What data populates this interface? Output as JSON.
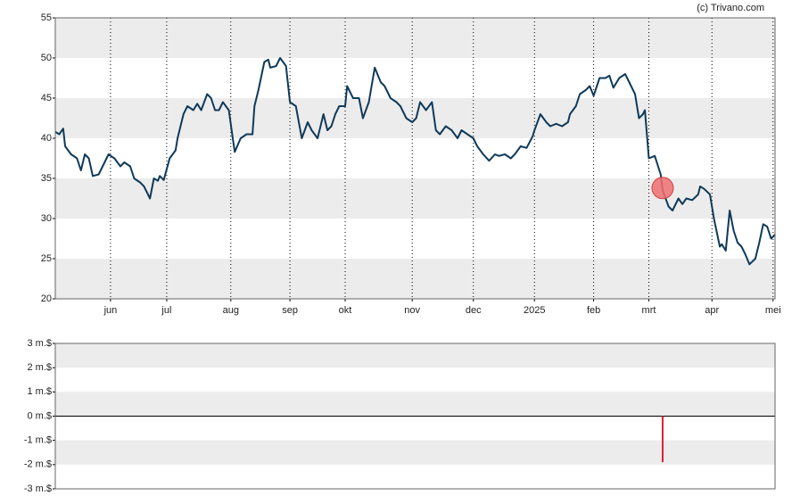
{
  "credit": "(c) Trivano.com",
  "chart_data": [
    {
      "type": "line",
      "color": "#0f3a5a",
      "marker_color": "#f07070",
      "x": [
        0,
        2,
        4,
        5,
        8,
        11,
        13,
        15,
        17,
        19,
        22,
        24,
        27,
        30,
        33,
        35,
        38,
        40,
        43,
        45,
        48,
        50,
        52,
        53,
        55,
        58,
        61,
        62,
        65,
        67,
        70,
        72,
        74,
        77,
        79,
        81,
        83,
        85,
        88,
        90,
        91,
        94,
        97,
        100,
        101,
        103,
        106,
        108,
        109,
        112,
        114,
        117,
        119,
        122,
        125,
        128,
        130,
        133,
        136,
        138,
        140,
        142,
        144,
        147,
        148,
        151,
        154,
        156,
        159,
        162,
        165,
        167,
        170,
        173,
        175,
        178,
        181,
        183,
        185,
        188,
        191,
        193,
        195,
        198,
        201,
        204,
        206,
        209,
        212,
        214,
        217,
        220,
        223,
        225,
        228,
        231,
        233,
        236,
        239,
        242,
        243,
        246,
        249,
        251,
        254,
        257,
        260,
        261,
        264,
        266,
        269,
        271,
        273,
        276,
        279,
        281,
        283,
        286,
        289,
        291,
        294,
        296,
        298,
        299,
        301,
        304,
        307,
        308,
        311,
        313,
        316,
        318,
        320,
        323,
        326,
        327,
        329,
        332,
        334,
        337,
        338,
        340,
        342,
        344,
        346,
        348,
        350,
        352,
        355,
        357,
        359,
        361,
        363,
        365
      ],
      "values": [
        40.8,
        40.5,
        41.2,
        39,
        38,
        37.5,
        36,
        38,
        37.5,
        35.3,
        35.5,
        36.5,
        38,
        37.5,
        36.5,
        37,
        36.5,
        35,
        34.5,
        34,
        32.5,
        35,
        34.7,
        35.3,
        34.8,
        37.5,
        38.5,
        40,
        43,
        44,
        43.5,
        44.3,
        43.5,
        45.5,
        45,
        43.5,
        43.5,
        44.5,
        43.5,
        40,
        38.3,
        40,
        40.5,
        40.5,
        44,
        46,
        49.5,
        49.8,
        48.8,
        49,
        50,
        49,
        44.5,
        44,
        40,
        42,
        41,
        40,
        43,
        41,
        41.5,
        43,
        44,
        44,
        46.5,
        45,
        45,
        42.5,
        44.5,
        48.8,
        47,
        46.5,
        45,
        44.5,
        44,
        42.5,
        42,
        42.5,
        44.5,
        43.5,
        44.5,
        41,
        40.5,
        41.5,
        41,
        40,
        41,
        40.5,
        40,
        39,
        38,
        37.2,
        38,
        37.8,
        38,
        37.5,
        38,
        39,
        38.8,
        40.2,
        41,
        43,
        42,
        41.5,
        41.8,
        41.5,
        42,
        43,
        44,
        45.5,
        46,
        46.5,
        45.3,
        47.5,
        47.5,
        47.8,
        46.3,
        47.5,
        48,
        47,
        45.5,
        42.5,
        43,
        43.5,
        37.5,
        37.8,
        35.5,
        33.5,
        31.5,
        31,
        32.5,
        31.8,
        32.5,
        32.3,
        33,
        34,
        33.7,
        33,
        30,
        26.5,
        26.8,
        26,
        31,
        28.5,
        27,
        26.5,
        25.5,
        24.3,
        25,
        27,
        29.3,
        29,
        27.5,
        28
      ],
      "markers": {
        "x": [
          308
        ],
        "values": [
          33.8
        ]
      },
      "xlim": [
        0,
        365
      ],
      "xticks": [
        {
          "value": 28,
          "label": "jun"
        },
        {
          "value": 56.5,
          "label": "jul"
        },
        {
          "value": 89,
          "label": "aug"
        },
        {
          "value": 119,
          "label": "sep"
        },
        {
          "value": 147,
          "label": "okt"
        },
        {
          "value": 181,
          "label": "nov"
        },
        {
          "value": 212,
          "label": "dec"
        },
        {
          "value": 243,
          "label": "2025"
        },
        {
          "value": 273,
          "label": "feb"
        },
        {
          "value": 301,
          "label": "mrt"
        },
        {
          "value": 333,
          "label": "apr"
        },
        {
          "value": 364,
          "label": "mei"
        }
      ],
      "ylim": [
        20,
        55
      ],
      "yticks": [
        20,
        25,
        30,
        35,
        40,
        45,
        50,
        55
      ],
      "grid": true
    },
    {
      "type": "bar",
      "color": "#e0203a",
      "x": [
        308
      ],
      "values": [
        -1.9
      ],
      "xlim": [
        0,
        365
      ],
      "ylim": [
        -3,
        3
      ],
      "yticks": [
        {
          "value": -3,
          "label": "-3 m.$"
        },
        {
          "value": -2,
          "label": "-2 m.$"
        },
        {
          "value": -1,
          "label": "-1 m.$"
        },
        {
          "value": 0,
          "label": "0 m.$"
        },
        {
          "value": 1,
          "label": "1 m.$"
        },
        {
          "value": 2,
          "label": "2 m.$"
        },
        {
          "value": 3,
          "label": "3 m.$"
        }
      ],
      "zero_line": true
    }
  ]
}
